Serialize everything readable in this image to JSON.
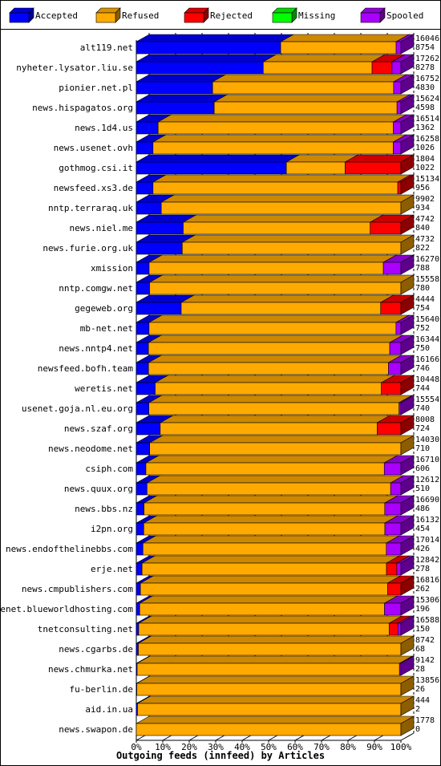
{
  "chart_data": {
    "type": "bar",
    "orientation": "horizontal",
    "stacked": true,
    "xlabel": "Outgoing feeds (innfeed) by Articles",
    "x_ticks": [
      "0%",
      "10%",
      "20%",
      "30%",
      "40%",
      "50%",
      "60%",
      "70%",
      "80%",
      "90%",
      "100%"
    ],
    "legend": {
      "placement": "top",
      "entries": [
        {
          "name": "Accepted",
          "color": "#0000ff"
        },
        {
          "name": "Refused",
          "color": "#ffaa00"
        },
        {
          "name": "Rejected",
          "color": "#ff0000"
        },
        {
          "name": "Missing",
          "color": "#00ff00"
        },
        {
          "name": "Spooled",
          "color": "#aa00ff"
        }
      ]
    },
    "grid": "vertical dashed lines every 10%",
    "categories": [
      "alt119.net",
      "nyheter.lysator.liu.se",
      "pionier.net.pl",
      "news.hispagatos.org",
      "news.1d4.us",
      "news.usenet.ovh",
      "gothmog.csi.it",
      "newsfeed.xs3.de",
      "nntp.terraraq.uk",
      "news.niel.me",
      "news.furie.org.uk",
      "xmission",
      "nntp.comgw.net",
      "gegeweb.org",
      "mb-net.net",
      "news.nntp4.net",
      "newsfeed.bofh.team",
      "weretis.net",
      "usenet.goja.nl.eu.org",
      "news.szaf.org",
      "news.neodome.net",
      "csiph.com",
      "news.quux.org",
      "news.bbs.nz",
      "i2pn.org",
      "news.endofthelinebbs.com",
      "erje.net",
      "news.cmpublishers.com",
      "usenet.blueworldhosting.com",
      "tnetconsulting.net",
      "news.cgarbs.de",
      "news.chmurka.net",
      "fu-berlin.de",
      "aid.in.ua",
      "news.swapon.de"
    ],
    "offered": [
      16046,
      17262,
      16752,
      15624,
      16514,
      16258,
      1804,
      15134,
      9902,
      4742,
      4732,
      16270,
      15558,
      4444,
      15640,
      16344,
      16166,
      10448,
      15554,
      8008,
      14030,
      16710,
      12612,
      16690,
      16132,
      17014,
      12842,
      16816,
      15306,
      16588,
      8742,
      9142,
      13856,
      444,
      1778
    ],
    "accepted": [
      8754,
      8278,
      4830,
      4598,
      1362,
      1026,
      1022,
      956,
      934,
      840,
      822,
      788,
      780,
      754,
      752,
      750,
      746,
      744,
      740,
      724,
      710,
      606,
      510,
      486,
      454,
      426,
      278,
      262,
      196,
      150,
      68,
      28,
      26,
      2,
      0
    ],
    "series": [
      {
        "name": "Accepted",
        "values": [
          8754,
          8278,
          4830,
          4598,
          1362,
          1026,
          1022,
          956,
          934,
          840,
          822,
          788,
          780,
          754,
          752,
          750,
          746,
          744,
          740,
          724,
          710,
          606,
          510,
          486,
          454,
          426,
          278,
          262,
          196,
          150,
          68,
          28,
          26,
          2,
          0
        ]
      },
      {
        "name": "Refused",
        "values": [
          7000,
          7100,
          11460,
          10790,
          14680,
          14760,
          400,
          14000,
          8960,
          3350,
          3910,
          14400,
          14770,
          3350,
          14600,
          14900,
          14660,
          8930,
          14700,
          6560,
          13320,
          15050,
          11610,
          15180,
          14700,
          15650,
          11860,
          15700,
          14160,
          15700,
          8670,
          9060,
          13800,
          440,
          1778
        ]
      },
      {
        "name": "Rejected",
        "values": [
          0,
          1300,
          0,
          0,
          0,
          0,
          380,
          180,
          0,
          550,
          0,
          0,
          0,
          340,
          0,
          0,
          0,
          770,
          0,
          720,
          0,
          0,
          0,
          0,
          0,
          0,
          500,
          850,
          0,
          550,
          0,
          0,
          0,
          0,
          0
        ]
      },
      {
        "name": "Missing",
        "values": [
          0,
          0,
          0,
          0,
          0,
          0,
          0,
          0,
          0,
          0,
          0,
          0,
          0,
          0,
          0,
          0,
          0,
          0,
          0,
          0,
          0,
          0,
          0,
          0,
          0,
          0,
          0,
          0,
          0,
          0,
          0,
          0,
          0,
          0,
          0
        ]
      },
      {
        "name": "Spooled",
        "values": [
          290,
          580,
          460,
          230,
          470,
          470,
          0,
          0,
          0,
          0,
          0,
          1080,
          0,
          0,
          290,
          690,
          760,
          0,
          110,
          0,
          0,
          1050,
          490,
          1020,
          980,
          940,
          200,
          0,
          950,
          190,
          0,
          50,
          0,
          0,
          0
        ]
      }
    ]
  }
}
